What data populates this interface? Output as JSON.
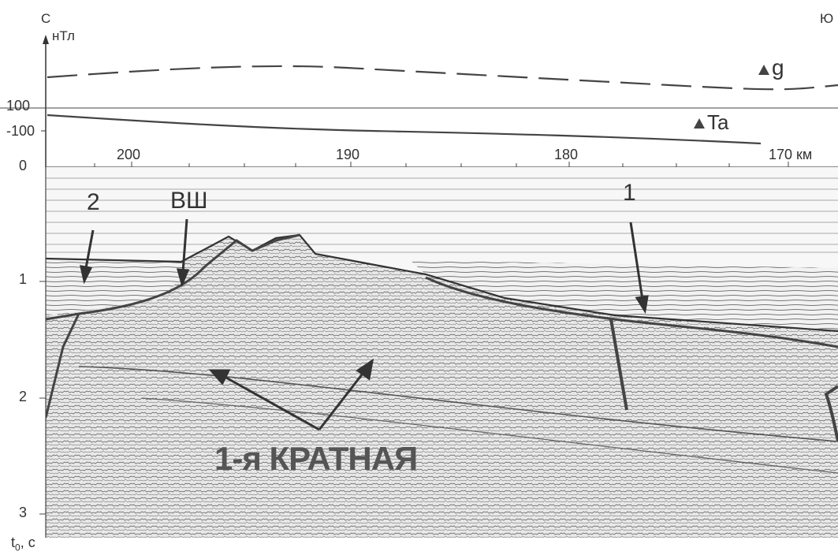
{
  "header": {
    "north_label": "С",
    "south_label": "Ю",
    "field_unit": "нТл"
  },
  "field_axis": {
    "tick_labels": [
      "100",
      "-100",
      "0"
    ]
  },
  "curves": {
    "gravity_label": "g",
    "magnetic_label": "Ta"
  },
  "distance_axis": {
    "tick_labels": [
      "200",
      "190",
      "180",
      "170 км"
    ]
  },
  "time_axis": {
    "tick_labels": [
      "1",
      "2",
      "3"
    ],
    "label_main": "t",
    "label_sub": "0",
    "label_unit": ", с"
  },
  "annotations": {
    "label_2": "2",
    "label_vsh": "ВШ",
    "label_1": "1",
    "multiple": "1-я КРАТНАЯ"
  }
}
